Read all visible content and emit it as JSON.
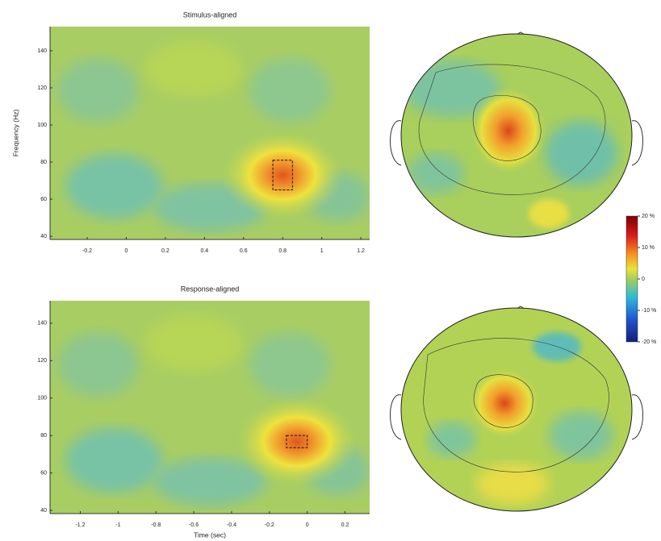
{
  "chart_data": [
    {
      "type": "heatmap",
      "title": "Stimulus-aligned",
      "ylabel": "Frequency (Hz)",
      "xlim": [
        -0.39,
        1.245
      ],
      "ylim": [
        38.3,
        153
      ],
      "xticks": [
        -0.2,
        0,
        0.2,
        0.4,
        0.6,
        0.8,
        1,
        1.2
      ],
      "yticks": [
        40,
        60,
        80,
        100,
        120,
        140
      ],
      "roi": {
        "x": [
          0.75,
          0.85
        ],
        "y": [
          65,
          81
        ]
      }
    },
    {
      "type": "heatmap",
      "title": "Response-aligned",
      "xlabel": "Time (sec)",
      "xlim": [
        -1.36,
        0.33
      ],
      "ylim": [
        38.3,
        152
      ],
      "xticks": [
        -1.2,
        -1,
        -0.8,
        -0.6,
        -0.4,
        -0.2,
        0,
        0.2
      ],
      "yticks": [
        40,
        60,
        80,
        100,
        120,
        140
      ],
      "roi": {
        "x": [
          -0.11,
          0
        ],
        "y": [
          73.5,
          80
        ]
      }
    },
    {
      "type": "colorbar",
      "lim": [
        -20,
        20
      ],
      "ticks": [
        {
          "value": 20,
          "label": "20 %"
        },
        {
          "value": 10,
          "label": "10 %"
        },
        0,
        {
          "value": -10,
          "label": "-10 %"
        },
        {
          "value": -20,
          "label": "-20 %"
        }
      ]
    }
  ]
}
